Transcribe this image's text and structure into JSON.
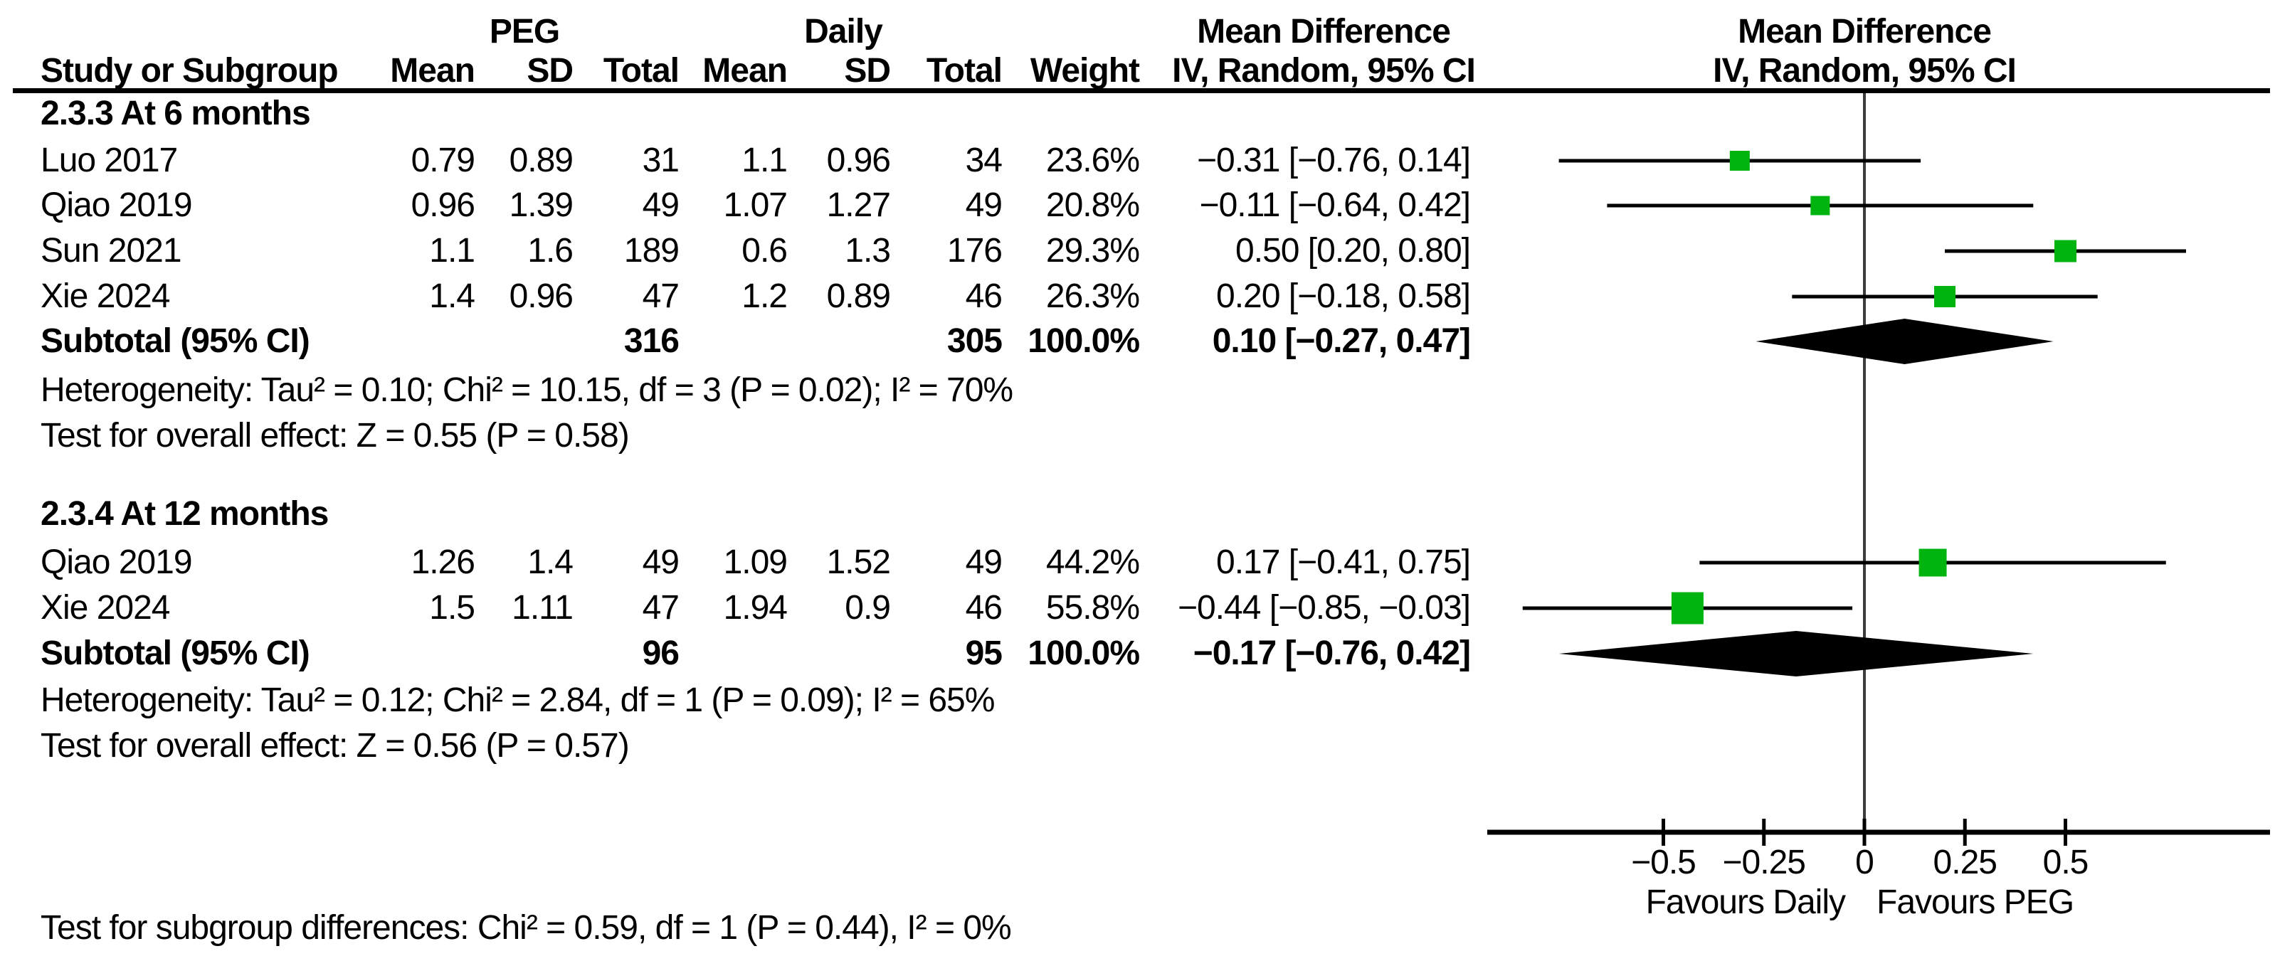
{
  "header": {
    "group1": "PEG",
    "group2": "Daily",
    "col_study": "Study or Subgroup",
    "col_mean1": "Mean",
    "col_sd1": "SD",
    "col_total1": "Total",
    "col_mean2": "Mean",
    "col_sd2": "SD",
    "col_total2": "Total",
    "col_weight": "Weight",
    "md_text_title": "Mean Difference",
    "md_text_sub": "IV, Random, 95% CI",
    "md_plot_title": "Mean Difference",
    "md_plot_sub": "IV, Random, 95% CI"
  },
  "table": {
    "subgroups": [
      {
        "label": "2.3.3 At 6 months",
        "studies": [
          {
            "name": "Luo 2017",
            "peg_mean": "0.79",
            "peg_sd": "0.89",
            "peg_total": "31",
            "daily_mean": "1.1",
            "daily_sd": "0.96",
            "daily_total": "34",
            "weight": "23.6%",
            "md_text": "−0.31 [−0.76, 0.14]"
          },
          {
            "name": "Qiao 2019",
            "peg_mean": "0.96",
            "peg_sd": "1.39",
            "peg_total": "49",
            "daily_mean": "1.07",
            "daily_sd": "1.27",
            "daily_total": "49",
            "weight": "20.8%",
            "md_text": "−0.11 [−0.64, 0.42]"
          },
          {
            "name": "Sun 2021",
            "peg_mean": "1.1",
            "peg_sd": "1.6",
            "peg_total": "189",
            "daily_mean": "0.6",
            "daily_sd": "1.3",
            "daily_total": "176",
            "weight": "29.3%",
            "md_text": "0.50 [0.20, 0.80]"
          },
          {
            "name": "Xie 2024",
            "peg_mean": "1.4",
            "peg_sd": "0.96",
            "peg_total": "47",
            "daily_mean": "1.2",
            "daily_sd": "0.89",
            "daily_total": "46",
            "weight": "26.3%",
            "md_text": "0.20 [−0.18, 0.58]"
          }
        ],
        "subtotal": {
          "label": "Subtotal (95% CI)",
          "peg_total": "316",
          "daily_total": "305",
          "weight": "100.0%",
          "md_text": "0.10 [−0.27, 0.47]"
        },
        "heterogeneity": "Heterogeneity: Tau² = 0.10; Chi² = 10.15, df = 3 (P = 0.02); I² = 70%",
        "overall_effect": "Test for overall effect: Z = 0.55 (P = 0.58)"
      },
      {
        "label": "2.3.4 At 12 months",
        "studies": [
          {
            "name": "Qiao 2019",
            "peg_mean": "1.26",
            "peg_sd": "1.4",
            "peg_total": "49",
            "daily_mean": "1.09",
            "daily_sd": "1.52",
            "daily_total": "49",
            "weight": "44.2%",
            "md_text": "0.17 [−0.41, 0.75]"
          },
          {
            "name": "Xie 2024",
            "peg_mean": "1.5",
            "peg_sd": "1.11",
            "peg_total": "47",
            "daily_mean": "1.94",
            "daily_sd": "0.9",
            "daily_total": "46",
            "weight": "55.8%",
            "md_text": "−0.44 [−0.85, −0.03]"
          }
        ],
        "subtotal": {
          "label": "Subtotal (95% CI)",
          "peg_total": "96",
          "daily_total": "95",
          "weight": "100.0%",
          "md_text": "−0.17 [−0.76, 0.42]"
        },
        "heterogeneity": "Heterogeneity: Tau² = 0.12; Chi² = 2.84, df = 1 (P = 0.09); I² = 65%",
        "overall_effect": "Test for overall effect: Z = 0.56 (P = 0.57)"
      }
    ],
    "footer": "Test for subgroup differences: Chi² = 0.59, df = 1 (P = 0.44), I² = 0%"
  },
  "chart_data": {
    "type": "forest",
    "title": "Mean Difference",
    "effect_model": "IV, Random, 95% CI",
    "null_line": 0,
    "xlim": [
      -0.94,
      1.01
    ],
    "x_ticks": [
      -0.5,
      -0.25,
      0,
      0.25,
      0.5
    ],
    "x_tick_labels": [
      "−0.5",
      "−0.25",
      "0",
      "0.25",
      "0.5"
    ],
    "favours_left": "Favours Daily",
    "favours_right": "Favours PEG",
    "groups": [
      {
        "label": "2.3.3 At 6 months",
        "points": [
          {
            "study": "Luo 2017",
            "md": -0.31,
            "ci": [
              -0.76,
              0.14
            ],
            "weight_pct": 23.6
          },
          {
            "study": "Qiao 2019",
            "md": -0.11,
            "ci": [
              -0.64,
              0.42
            ],
            "weight_pct": 20.8
          },
          {
            "study": "Sun 2021",
            "md": 0.5,
            "ci": [
              0.2,
              0.8
            ],
            "weight_pct": 29.3
          },
          {
            "study": "Xie 2024",
            "md": 0.2,
            "ci": [
              -0.18,
              0.58
            ],
            "weight_pct": 26.3
          }
        ],
        "diamond": {
          "md": 0.1,
          "ci": [
            -0.27,
            0.47
          ]
        }
      },
      {
        "label": "2.3.4 At 12 months",
        "points": [
          {
            "study": "Qiao 2019",
            "md": 0.17,
            "ci": [
              -0.41,
              0.75
            ],
            "weight_pct": 44.2
          },
          {
            "study": "Xie 2024",
            "md": -0.44,
            "ci": [
              -0.85,
              -0.03
            ],
            "weight_pct": 55.8
          }
        ],
        "diamond": {
          "md": -0.17,
          "ci": [
            -0.76,
            0.42
          ]
        }
      }
    ]
  },
  "colors": {
    "marker_green": "#00b410",
    "diamond_black": "#000000",
    "axis_black": "#000000",
    "null_line_gray": "#3c3c3c"
  }
}
